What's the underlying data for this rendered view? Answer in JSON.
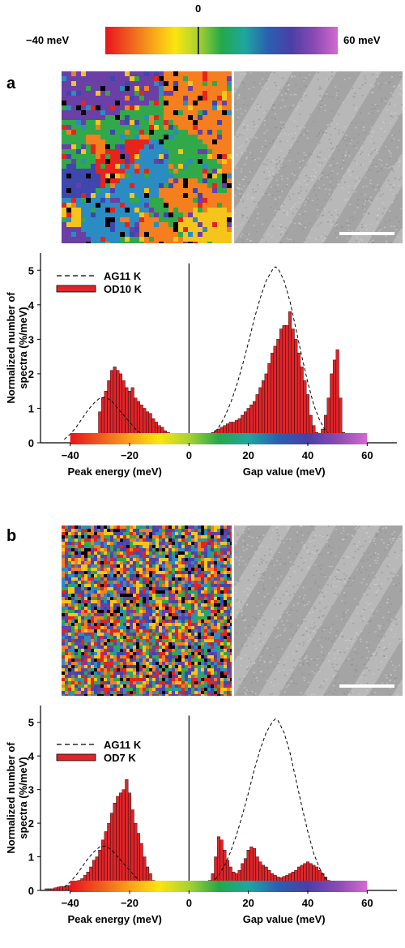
{
  "colorbar": {
    "zero_label": "0",
    "left_label": "−40 meV",
    "right_label": "60 meV",
    "colors": [
      "#e8141c",
      "#ef5a1e",
      "#f7a21a",
      "#fbe50f",
      "#a8d232",
      "#24a84a",
      "#1fa6a0",
      "#2b5fb2",
      "#4a3fa6",
      "#8b4ab4",
      "#d36ad0"
    ]
  },
  "panels": [
    {
      "letter": "a",
      "gap_map_colors": [
        "#e8231c",
        "#f57e1e",
        "#f5c51b",
        "#31a84a",
        "#2a8cc2",
        "#3d47ad",
        "#6a3fa6",
        "#000000"
      ],
      "topo_colors": [
        "#b8b8b8",
        "#8c8c8c",
        "#d4d4d4"
      ],
      "scale_bar": true
    },
    {
      "letter": "b",
      "gap_map_colors": [
        "#e8231c",
        "#f57e1e",
        "#f5c51b",
        "#31a84a",
        "#2a8cc2",
        "#3d47ad",
        "#6a3fa6",
        "#000000"
      ],
      "topo_colors": [
        "#b8b8b8",
        "#8c8c8c",
        "#d4d4d4"
      ],
      "scale_bar": true
    }
  ],
  "chart_data": [
    {
      "type": "bar",
      "ylabel": "Normalized number of spectra (%/meV)",
      "xlabel_left": "Peak energy (meV)",
      "xlabel_right": "Gap value (meV)",
      "xlim": [
        -50,
        70
      ],
      "ylim": [
        0,
        5.5
      ],
      "xticks": [
        -40,
        -20,
        0,
        20,
        40,
        60
      ],
      "xtick_labels": [
        "−40",
        "−20",
        "0",
        "20",
        "40",
        "60"
      ],
      "yticks": [
        0,
        1,
        2,
        3,
        4,
        5
      ],
      "ytick_labels": [
        "0",
        "1",
        "2",
        "3",
        "4",
        "5"
      ],
      "legend": [
        "AG11 K",
        "OD10 K"
      ],
      "bar_color": "#e0252a",
      "series": [
        {
          "name": "OD10 K",
          "kind": "bars",
          "bin_width": 1,
          "x": [
            -31,
            -30,
            -29,
            -28,
            -27,
            -26,
            -25,
            -24,
            -23,
            -22,
            -21,
            -20,
            -19,
            -18,
            -17,
            -16,
            -15,
            -14,
            -13,
            -12,
            -11,
            -10,
            -9,
            -8,
            -7,
            -6,
            -5,
            -4,
            -3,
            -2,
            1,
            2,
            3,
            4,
            5,
            6,
            7,
            8,
            9,
            10,
            11,
            12,
            13,
            14,
            15,
            16,
            17,
            18,
            19,
            20,
            21,
            22,
            23,
            24,
            25,
            26,
            27,
            28,
            29,
            30,
            31,
            32,
            33,
            34,
            35,
            36,
            37,
            38,
            39,
            40,
            41,
            42,
            43,
            44,
            45,
            46,
            47,
            48,
            49,
            50,
            51,
            52
          ],
          "values": [
            0.2,
            0.9,
            1.3,
            1.5,
            1.8,
            2.1,
            2.2,
            2.1,
            2.0,
            1.8,
            1.6,
            1.5,
            1.6,
            1.3,
            1.2,
            1.1,
            1.0,
            0.9,
            0.85,
            0.7,
            0.6,
            0.5,
            0.45,
            0.35,
            0.3,
            0.25,
            0.18,
            0.12,
            0.08,
            0.05,
            0.05,
            0.08,
            0.12,
            0.15,
            0.18,
            0.2,
            0.25,
            0.3,
            0.35,
            0.4,
            0.45,
            0.5,
            0.55,
            0.6,
            0.6,
            0.65,
            0.7,
            0.8,
            0.9,
            1.0,
            1.1,
            1.2,
            1.4,
            1.6,
            1.8,
            2.0,
            2.3,
            2.6,
            2.8,
            3.0,
            3.3,
            3.4,
            3.4,
            3.8,
            3.3,
            3.0,
            2.6,
            2.2,
            1.8,
            1.4,
            0.8,
            0.5,
            0.3,
            0.2,
            0.4,
            0.8,
            1.3,
            2.0,
            2.4,
            2.7,
            1.3,
            0.3
          ]
        },
        {
          "name": "AG11 K",
          "kind": "dashed-curve",
          "x": [
            -42,
            -40,
            -38,
            -36,
            -34,
            -32,
            -30,
            -28,
            -26,
            -24,
            -22,
            -20,
            -18,
            -16,
            -14,
            -12,
            -10,
            4,
            6,
            8,
            10,
            12,
            14,
            16,
            18,
            20,
            22,
            24,
            26,
            28,
            29,
            30,
            32,
            34,
            36,
            38,
            40,
            42,
            44,
            46,
            48,
            50,
            52
          ],
          "values": [
            0.1,
            0.25,
            0.45,
            0.7,
            0.95,
            1.15,
            1.3,
            1.32,
            1.2,
            1.0,
            0.8,
            0.6,
            0.4,
            0.25,
            0.15,
            0.08,
            0.03,
            0.05,
            0.12,
            0.25,
            0.45,
            0.75,
            1.15,
            1.65,
            2.25,
            2.9,
            3.6,
            4.2,
            4.7,
            5.0,
            5.1,
            5.05,
            4.7,
            4.1,
            3.3,
            2.5,
            1.75,
            1.1,
            0.65,
            0.35,
            0.18,
            0.08,
            0.03
          ]
        }
      ]
    },
    {
      "type": "bar",
      "ylabel": "Normalized number of spectra (%/meV)",
      "xlabel_left": "Peak energy (meV)",
      "xlabel_right": "Gap value (meV)",
      "xlim": [
        -50,
        70
      ],
      "ylim": [
        0,
        5.5
      ],
      "xticks": [
        -40,
        -20,
        0,
        20,
        40,
        60
      ],
      "xtick_labels": [
        "−40",
        "−20",
        "0",
        "20",
        "40",
        "60"
      ],
      "yticks": [
        0,
        1,
        2,
        3,
        4,
        5
      ],
      "ytick_labels": [
        "0",
        "1",
        "2",
        "3",
        "4",
        "5"
      ],
      "legend": [
        "AG11 K",
        "OD7 K"
      ],
      "bar_color": "#e0252a",
      "series": [
        {
          "name": "OD7 K",
          "kind": "bars",
          "bin_width": 1,
          "x": [
            -48,
            -47,
            -46,
            -45,
            -44,
            -43,
            -42,
            -41,
            -40,
            -39,
            -38,
            -37,
            -36,
            -35,
            -34,
            -33,
            -32,
            -31,
            -30,
            -29,
            -28,
            -27,
            -26,
            -25,
            -24,
            -23,
            -22,
            -21,
            -20,
            -19,
            -18,
            -17,
            -16,
            -15,
            -14,
            -13,
            -12,
            -11,
            -10,
            -9,
            -8,
            3,
            4,
            5,
            6,
            7,
            8,
            9,
            10,
            11,
            12,
            13,
            14,
            15,
            16,
            17,
            18,
            19,
            20,
            21,
            22,
            23,
            24,
            25,
            26,
            27,
            28,
            29,
            30,
            31,
            32,
            33,
            34,
            35,
            36,
            37,
            38,
            39,
            40,
            41,
            42,
            43,
            44,
            45,
            46,
            47,
            48,
            49,
            50,
            51
          ],
          "values": [
            0.05,
            0.05,
            0.05,
            0.08,
            0.1,
            0.12,
            0.12,
            0.15,
            0.15,
            0.2,
            0.25,
            0.3,
            0.35,
            0.45,
            0.55,
            0.7,
            0.9,
            1.0,
            1.2,
            1.5,
            1.75,
            2.0,
            2.3,
            2.6,
            2.8,
            2.9,
            3.0,
            3.3,
            2.9,
            2.4,
            2.0,
            1.7,
            1.4,
            1.0,
            0.7,
            0.5,
            0.3,
            0.2,
            0.12,
            0.08,
            0.05,
            0.05,
            0.08,
            0.12,
            0.2,
            0.3,
            0.5,
            1.0,
            1.6,
            1.5,
            1.2,
            0.9,
            0.7,
            0.55,
            0.5,
            0.6,
            0.8,
            0.95,
            1.2,
            1.3,
            1.25,
            1.0,
            0.85,
            0.75,
            0.7,
            0.6,
            0.5,
            0.45,
            0.4,
            0.38,
            0.42,
            0.45,
            0.5,
            0.55,
            0.6,
            0.7,
            0.75,
            0.8,
            0.85,
            0.8,
            0.75,
            0.7,
            0.6,
            0.5,
            0.4,
            0.3,
            0.2,
            0.15,
            0.1,
            0.05
          ]
        },
        {
          "name": "AG11 K",
          "kind": "dashed-curve",
          "x": [
            -42,
            -40,
            -38,
            -36,
            -34,
            -32,
            -30,
            -28,
            -26,
            -24,
            -22,
            -20,
            -18,
            -16,
            -14,
            -12,
            -10,
            4,
            6,
            8,
            10,
            12,
            14,
            16,
            18,
            20,
            22,
            24,
            26,
            28,
            29,
            30,
            32,
            34,
            36,
            38,
            40,
            42,
            44,
            46,
            48,
            50,
            52
          ],
          "values": [
            0.1,
            0.25,
            0.45,
            0.7,
            0.95,
            1.15,
            1.3,
            1.32,
            1.2,
            1.0,
            0.8,
            0.6,
            0.4,
            0.25,
            0.15,
            0.08,
            0.03,
            0.05,
            0.12,
            0.25,
            0.45,
            0.75,
            1.15,
            1.65,
            2.25,
            2.9,
            3.6,
            4.2,
            4.7,
            5.0,
            5.1,
            5.05,
            4.7,
            4.1,
            3.3,
            2.5,
            1.75,
            1.1,
            0.65,
            0.35,
            0.18,
            0.08,
            0.03
          ]
        }
      ]
    }
  ]
}
